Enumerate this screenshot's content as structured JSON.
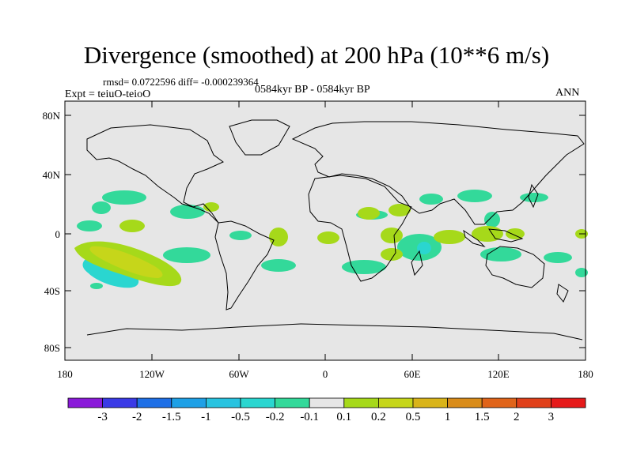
{
  "title": "Divergence (smoothed) at 200 hPa (10**6 m/s)",
  "stats": "rmsd= 0.0722596 diff= -0.000239364",
  "experiment": "Expt = teiuO-teioO",
  "period": "0584kyr BP - 0584kyr BP",
  "season": "ANN",
  "latitude_labels": [
    "80N",
    "40N",
    "0",
    "40S",
    "80S"
  ],
  "longitude_labels": [
    "180",
    "120W",
    "60W",
    "0",
    "60E",
    "120E",
    "180"
  ],
  "colorbar": {
    "colors": [
      "#8a1ad9",
      "#3a3ae6",
      "#1e6fe6",
      "#1ea0e6",
      "#28c3e0",
      "#2ad6d0",
      "#33d99a",
      "#e6e6e6",
      "#a6d91a",
      "#c6d61a",
      "#d9b41a",
      "#d98c1a",
      "#e0641a",
      "#e0401a",
      "#e61a1a"
    ],
    "labels": [
      "-3",
      "-2",
      "-1.5",
      "-1",
      "-0.5",
      "-0.2",
      "-0.1",
      "0.1",
      "0.2",
      "0.5",
      "1",
      "1.5",
      "2",
      "3"
    ]
  }
}
